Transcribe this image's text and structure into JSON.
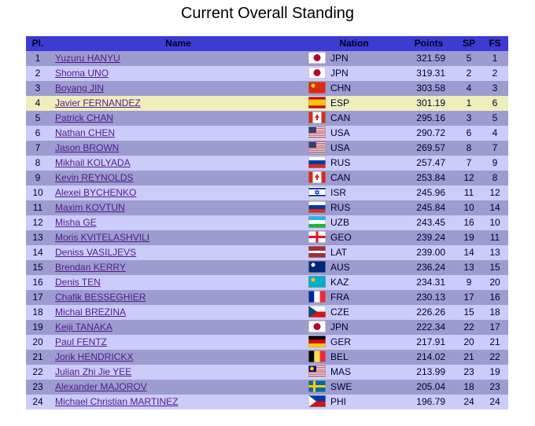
{
  "title": "Current Overall Standing",
  "table": {
    "columns": [
      "Pl.",
      "Name",
      "Nation",
      "Points",
      "SP",
      "FS"
    ],
    "rows": [
      [
        "1",
        "Yuzuru HANYU",
        "JPN",
        "321.59",
        "5",
        "1"
      ],
      [
        "2",
        "Shoma UNO",
        "JPN",
        "319.31",
        "2",
        "2"
      ],
      [
        "3",
        "Boyang JIN",
        "CHN",
        "303.58",
        "4",
        "3"
      ],
      [
        "4",
        "Javier FERNANDEZ",
        "ESP",
        "301.19",
        "1",
        "6"
      ],
      [
        "5",
        "Patrick CHAN",
        "CAN",
        "295.16",
        "3",
        "5"
      ],
      [
        "6",
        "Nathan CHEN",
        "USA",
        "290.72",
        "6",
        "4"
      ],
      [
        "7",
        "Jason BROWN",
        "USA",
        "269.57",
        "8",
        "7"
      ],
      [
        "8",
        "Mikhail KOLYADA",
        "RUS",
        "257.47",
        "7",
        "9"
      ],
      [
        "9",
        "Kevin REYNOLDS",
        "CAN",
        "253.84",
        "12",
        "8"
      ],
      [
        "10",
        "Alexei BYCHENKO",
        "ISR",
        "245.96",
        "11",
        "12"
      ],
      [
        "11",
        "Maxim KOVTUN",
        "RUS",
        "245.84",
        "10",
        "14"
      ],
      [
        "12",
        "Misha GE",
        "UZB",
        "243.45",
        "16",
        "10"
      ],
      [
        "13",
        "Moris KVITELASHVILI",
        "GEO",
        "239.24",
        "19",
        "11"
      ],
      [
        "14",
        "Deniss VASILJEVS",
        "LAT",
        "239.00",
        "14",
        "13"
      ],
      [
        "15",
        "Brendan KERRY",
        "AUS",
        "236.24",
        "13",
        "15"
      ],
      [
        "16",
        "Denis TEN",
        "KAZ",
        "234.31",
        "9",
        "20"
      ],
      [
        "17",
        "Chafik BESSEGHIER",
        "FRA",
        "230.13",
        "17",
        "16"
      ],
      [
        "18",
        "Michal BREZINA",
        "CZE",
        "226.26",
        "15",
        "18"
      ],
      [
        "19",
        "Keiji TANAKA",
        "JPN",
        "222.34",
        "22",
        "17"
      ],
      [
        "20",
        "Paul FENTZ",
        "GER",
        "217.91",
        "20",
        "21"
      ],
      [
        "21",
        "Jorik HENDRICKX",
        "BEL",
        "214.02",
        "21",
        "22"
      ],
      [
        "22",
        "Julian Zhi Jie YEE",
        "MAS",
        "213.99",
        "23",
        "19"
      ],
      [
        "23",
        "Alexander MAJOROV",
        "SWE",
        "205.04",
        "18",
        "23"
      ],
      [
        "24",
        "Michael Christian MARTINEZ",
        "PHI",
        "196.79",
        "24",
        "24"
      ]
    ]
  }
}
